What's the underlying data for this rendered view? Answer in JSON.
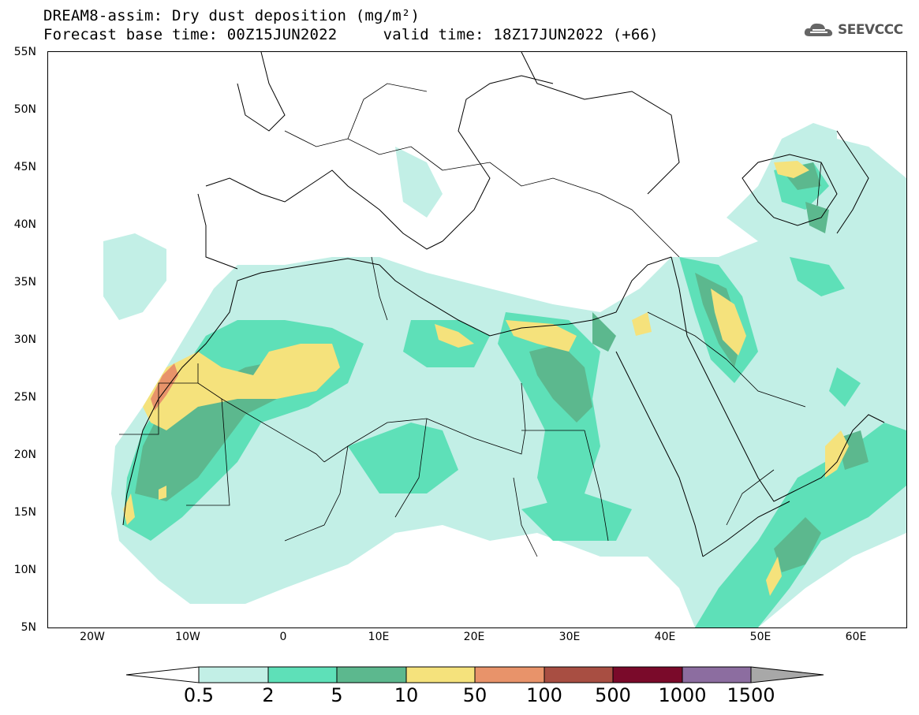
{
  "title": {
    "line1": "DREAM8-assim: Dry dust deposition (mg/m²)",
    "line2": "Forecast base time: 00Z15JUN2022     valid time: 18Z17JUN2022 (+66)"
  },
  "logo": {
    "text": "SEEVCCC",
    "icon": "cloud-icon"
  },
  "axes": {
    "lat_labels": [
      "55N",
      "50N",
      "45N",
      "40N",
      "35N",
      "30N",
      "25N",
      "20N",
      "15N",
      "10N",
      "5N"
    ],
    "lon_labels": [
      "20W",
      "10W",
      "0",
      "10E",
      "20E",
      "30E",
      "40E",
      "50E",
      "60E"
    ],
    "lat_range": [
      5,
      55
    ],
    "lon_range": [
      -25,
      65
    ]
  },
  "colorbar": {
    "labels": [
      "0.5",
      "2",
      "5",
      "10",
      "50",
      "100",
      "500",
      "1000",
      "1500"
    ],
    "colors": [
      "#c2efe6",
      "#5ee0b8",
      "#5cb88e",
      "#f5e27c",
      "#e8936a",
      "#a84e42",
      "#7a0a2a",
      "#8c6da0",
      "#a8a8a8"
    ]
  }
}
